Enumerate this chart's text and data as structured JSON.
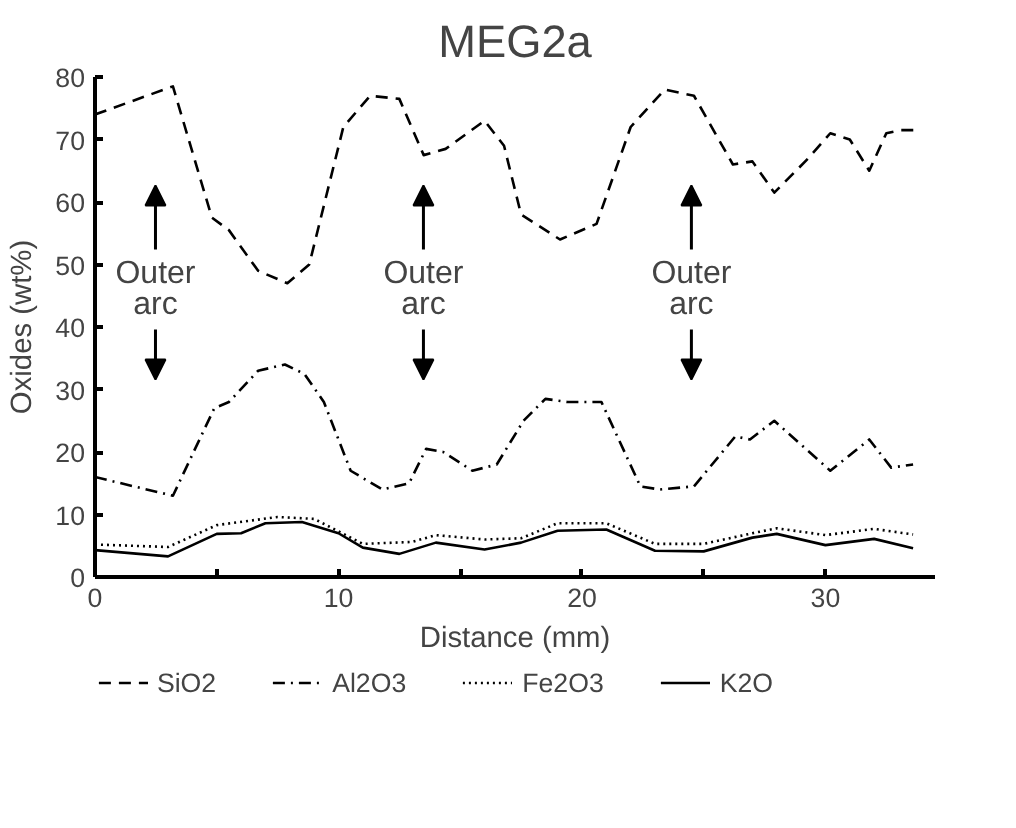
{
  "chart_data": {
    "type": "line",
    "title": "MEG2a",
    "xlabel": "Distance (mm)",
    "ylabel": "Oxides (wt%)",
    "xlim": [
      0,
      34.5
    ],
    "ylim": [
      0,
      80
    ],
    "xticks": [
      0,
      {
        "value": 5,
        "label": null
      },
      10,
      {
        "value": 15,
        "label": null
      },
      20,
      {
        "value": 25,
        "label": null
      },
      30
    ],
    "yticks": [
      0,
      10,
      20,
      30,
      40,
      50,
      60,
      70,
      80
    ],
    "grid": false,
    "legend": "bottom",
    "marker": "none",
    "annotations": [
      "Outer arc",
      "Outer arc",
      "Outer arc"
    ],
    "series": [
      {
        "name": "SiO2",
        "color": "#000000",
        "line_style": "dashed",
        "x": [
          0,
          3.2,
          4.8,
          5.5,
          6.7,
          7.9,
          8.8,
          10.2,
          11.3,
          12.5,
          13.5,
          14.4,
          16.0,
          16.8,
          17.5,
          19.1,
          20.6,
          22.0,
          23.4,
          24.6,
          26.2,
          27.0,
          27.9,
          29.3,
          30.2,
          31.0,
          31.8,
          32.5,
          33.1,
          33.8
        ],
        "values": [
          74,
          78.5,
          57.5,
          55.5,
          49,
          47,
          50,
          72,
          77,
          76.5,
          67.5,
          68.5,
          73,
          69,
          58,
          54,
          56.5,
          72,
          78,
          77,
          66,
          66.5,
          61.5,
          67,
          71,
          70,
          65,
          71,
          71.5,
          71.5
        ]
      },
      {
        "name": "Al2O3",
        "color": "#000000",
        "line_style": "dashdot",
        "x": [
          0,
          3.2,
          4.9,
          5.5,
          6.7,
          7.8,
          8.6,
          9.4,
          10.5,
          11.8,
          12.9,
          13.6,
          14.3,
          15.5,
          16.5,
          17.6,
          18.5,
          19.4,
          20.8,
          22.4,
          23.2,
          24.6,
          26.3,
          26.9,
          27.9,
          30.2,
          31.8,
          32.7,
          33.6
        ],
        "values": [
          16,
          13,
          27,
          28,
          33,
          34,
          32.5,
          28,
          17,
          14,
          15,
          20.5,
          20,
          17,
          18,
          25,
          28.5,
          28,
          28,
          14.5,
          14,
          14.5,
          22.5,
          22,
          25,
          17,
          22,
          17.5,
          18
        ]
      },
      {
        "name": "Fe2O3",
        "color": "#000000",
        "line_style": "dotted",
        "x": [
          0,
          3,
          5,
          7.5,
          9,
          11,
          13,
          14,
          16,
          17.5,
          19,
          21,
          23,
          25,
          27,
          28,
          30,
          32,
          33.6
        ],
        "values": [
          5.2,
          4.8,
          8.3,
          9.6,
          9.3,
          5.3,
          5.6,
          6.7,
          6,
          6.2,
          8.6,
          8.6,
          5.3,
          5.3,
          7,
          7.8,
          6.7,
          7.7,
          6.8
        ]
      },
      {
        "name": "K2O",
        "color": "#000000",
        "line_style": "solid",
        "x": [
          0,
          3,
          5,
          6,
          7,
          8.5,
          10,
          11,
          12.5,
          14,
          16,
          17.5,
          19,
          21,
          23,
          25,
          27,
          28,
          30,
          32,
          33.6
        ],
        "values": [
          4.3,
          3.3,
          6.9,
          7,
          8.6,
          8.8,
          7,
          4.7,
          3.7,
          5.5,
          4.4,
          5.5,
          7.4,
          7.6,
          4.2,
          4.1,
          6.3,
          6.9,
          5.1,
          6.1,
          4.6
        ]
      }
    ]
  }
}
